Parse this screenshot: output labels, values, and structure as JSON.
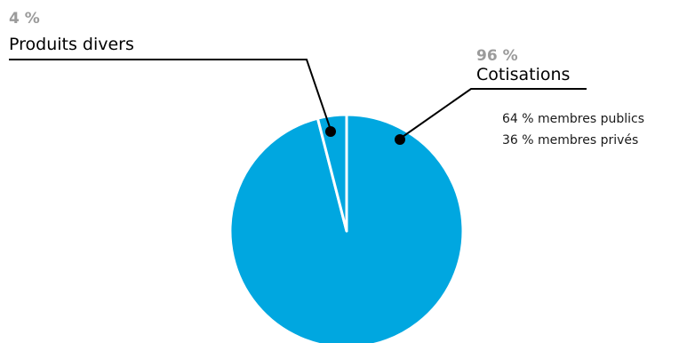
{
  "chart_data": {
    "type": "pie",
    "slices": [
      {
        "name": "Cotisations",
        "value": 96,
        "value_label": "96 %"
      },
      {
        "name": "Produits divers",
        "value": 4,
        "value_label": "4 %"
      }
    ],
    "annotations": [
      "64 % membres publics",
      "36 % membres privés"
    ],
    "colors": {
      "slice": "#00a7e0",
      "percent_label": "#9b9b9b",
      "separator": "#ffffff"
    }
  }
}
